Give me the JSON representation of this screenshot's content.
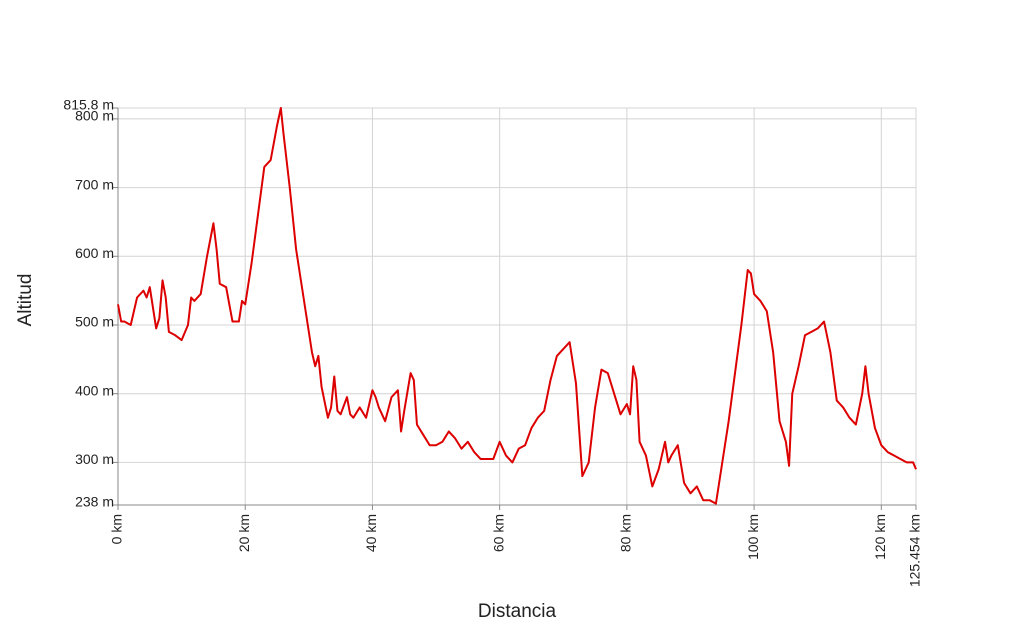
{
  "chart_data": {
    "type": "line",
    "x_label": "Distancia",
    "y_label": "Altitud",
    "color": "#dd0000",
    "grid": true,
    "xlim": [
      0,
      125.454
    ],
    "ylim": [
      238,
      815.8
    ],
    "xticks": [
      {
        "value": 0,
        "label": "0 km"
      },
      {
        "value": 20,
        "label": "20 km"
      },
      {
        "value": 40,
        "label": "40 km"
      },
      {
        "value": 60,
        "label": "60 km"
      },
      {
        "value": 80,
        "label": "80 km"
      },
      {
        "value": 100,
        "label": "100 km"
      },
      {
        "value": 120,
        "label": "120 km"
      },
      {
        "value": 125.454,
        "label": "125.454 km"
      }
    ],
    "yticks": [
      {
        "value": 238,
        "label": "238 m"
      },
      {
        "value": 300,
        "label": "300 m"
      },
      {
        "value": 400,
        "label": "400 m"
      },
      {
        "value": 500,
        "label": "500 m"
      },
      {
        "value": 600,
        "label": "600 m"
      },
      {
        "value": 700,
        "label": "700 m"
      },
      {
        "value": 800,
        "label": "800 m"
      },
      {
        "value": 815.8,
        "label": "815.8 m"
      }
    ],
    "x": [
      0,
      0.5,
      1,
      2,
      3,
      4,
      4.5,
      5,
      6,
      6.5,
      7,
      7.5,
      8,
      9,
      10,
      11,
      11.5,
      12,
      13,
      14,
      15,
      15.5,
      16,
      17,
      18,
      19,
      19.5,
      20,
      21,
      22,
      23,
      24,
      25,
      25.6,
      26,
      27,
      28,
      29,
      30,
      30.5,
      31,
      31.5,
      32,
      33,
      33.5,
      34,
      34.5,
      35,
      36,
      36.5,
      37,
      38,
      39,
      40,
      40.5,
      41,
      42,
      43,
      44,
      44.5,
      45,
      46,
      46.5,
      47,
      48,
      49,
      50,
      51,
      52,
      53,
      54,
      55,
      56,
      57,
      58,
      59,
      60,
      61,
      62,
      63,
      64,
      65,
      66,
      67,
      68,
      69,
      70,
      71,
      72,
      73,
      74,
      75,
      76,
      77,
      78,
      79,
      80,
      80.5,
      81,
      81.5,
      82,
      83,
      84,
      85,
      86,
      86.5,
      87,
      88,
      89,
      90,
      91,
      92,
      93,
      94,
      95,
      96,
      97,
      98,
      99,
      99.5,
      100,
      101,
      102,
      103,
      104,
      105,
      105.5,
      106,
      107,
      108,
      109,
      110,
      111,
      112,
      113,
      114,
      115,
      116,
      117,
      117.5,
      118,
      119,
      120,
      121,
      122,
      123,
      124,
      125,
      125.454
    ],
    "values": [
      530,
      505,
      505,
      500,
      540,
      550,
      540,
      555,
      495,
      510,
      565,
      540,
      490,
      485,
      478,
      500,
      540,
      535,
      545,
      600,
      648,
      610,
      560,
      555,
      505,
      505,
      535,
      530,
      590,
      660,
      730,
      740,
      790,
      815.8,
      780,
      700,
      610,
      550,
      490,
      460,
      440,
      455,
      410,
      365,
      380,
      425,
      375,
      370,
      395,
      370,
      365,
      380,
      365,
      405,
      395,
      380,
      360,
      395,
      405,
      345,
      375,
      430,
      420,
      355,
      340,
      325,
      325,
      330,
      345,
      335,
      320,
      330,
      315,
      305,
      305,
      305,
      330,
      310,
      300,
      320,
      325,
      350,
      365,
      375,
      420,
      455,
      465,
      475,
      415,
      280,
      300,
      380,
      435,
      430,
      400,
      370,
      385,
      370,
      440,
      420,
      330,
      310,
      265,
      290,
      330,
      300,
      310,
      325,
      270,
      255,
      265,
      245,
      245,
      240,
      300,
      360,
      430,
      500,
      580,
      575,
      545,
      535,
      520,
      460,
      360,
      330,
      295,
      400,
      440,
      485,
      490,
      495,
      505,
      460,
      390,
      380,
      365,
      355,
      400,
      440,
      400,
      350,
      325,
      315,
      310,
      305,
      300,
      300,
      290
    ]
  }
}
